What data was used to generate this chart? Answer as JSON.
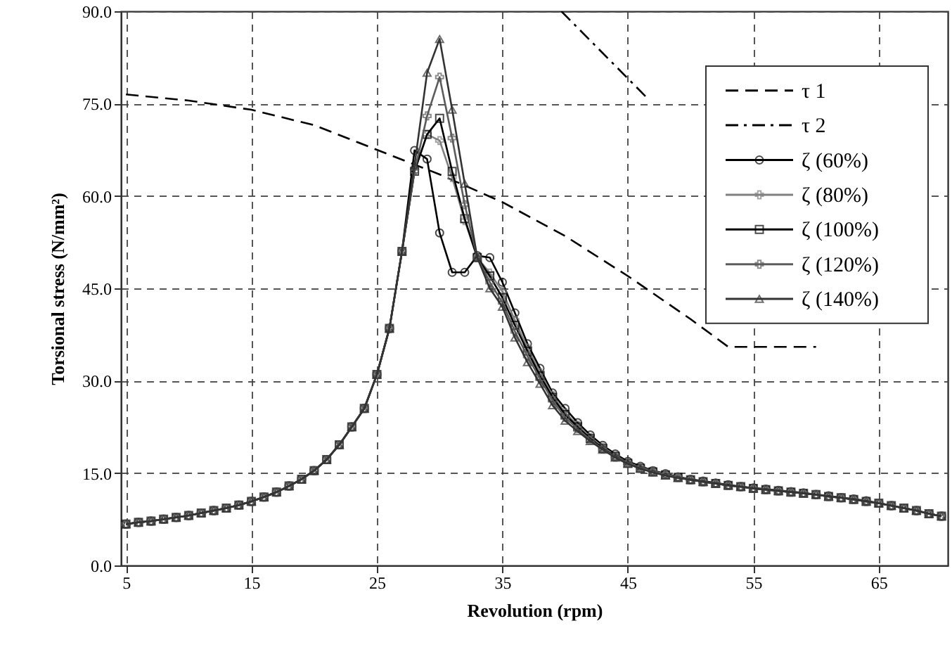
{
  "chart_data": {
    "type": "line",
    "xlabel": "Revolution (rpm)",
    "ylabel": "Torsional stress (N/mm²)",
    "xlim": [
      4.6,
      70.5
    ],
    "xticks": [
      5,
      15,
      25,
      35,
      45,
      55,
      65
    ],
    "ylim": [
      0,
      90
    ],
    "yticks": [
      {
        "value": 0,
        "label": "0.0"
      },
      {
        "value": 15,
        "label": "15.0"
      },
      {
        "value": 30,
        "label": "30.0"
      },
      {
        "value": 45,
        "label": "45.0"
      },
      {
        "value": 60,
        "label": "60.0"
      },
      {
        "value": 75,
        "label": "75.0"
      },
      {
        "value": 90,
        "label": "90.0"
      }
    ],
    "grid": true,
    "legend": "top right",
    "series": [
      {
        "name": "τ 1",
        "color": "#000000",
        "line_style": "dashed",
        "marker": "none",
        "x": [
          5,
          10,
          15,
          20,
          25,
          30,
          35,
          40,
          45,
          50,
          53,
          60
        ],
        "values": [
          76.5,
          75.5,
          74,
          71.5,
          67.5,
          63.5,
          59,
          53.5,
          47,
          40,
          35.5,
          35.5
        ]
      },
      {
        "name": "τ 2",
        "color": "#000000",
        "line_style": "dashdot",
        "marker": "none",
        "x": [
          39.7,
          46.5
        ],
        "values": [
          90,
          76
        ]
      },
      {
        "name": "ζ (60%)",
        "color": "#000000",
        "line_style": "solid",
        "marker": "circle",
        "x": [
          5,
          6,
          7,
          8,
          9,
          10,
          11,
          12,
          13,
          14,
          15,
          16,
          17,
          18,
          19,
          20,
          21,
          22,
          23,
          24,
          25,
          26,
          27,
          28,
          29,
          30,
          31,
          32,
          33,
          34,
          35,
          36,
          37,
          38,
          39,
          40,
          41,
          42,
          43,
          44,
          45,
          46,
          47,
          48,
          49,
          50,
          51,
          52,
          53,
          54,
          55,
          56,
          57,
          58,
          59,
          60,
          61,
          62,
          63,
          64,
          65,
          66,
          67,
          68,
          69,
          70
        ],
        "values": [
          6.7,
          7,
          7.2,
          7.5,
          7.8,
          8.1,
          8.5,
          8.9,
          9.3,
          9.8,
          10.4,
          11.1,
          11.9,
          12.9,
          14,
          15.4,
          17.2,
          19.6,
          22.5,
          25.5,
          31,
          38.5,
          51,
          67.4,
          66,
          54,
          47.6,
          47.6,
          50.3,
          50,
          46,
          41,
          36,
          32,
          28,
          25.5,
          23.2,
          21.2,
          19.5,
          18.1,
          16.9,
          16.1,
          15.4,
          14.9,
          14.4,
          14,
          13.7,
          13.4,
          13.1,
          12.8,
          12.6,
          12.4,
          12.2,
          12,
          11.8,
          11.5,
          11.3,
          11,
          10.8,
          10.5,
          10.1,
          9.7,
          9.3,
          8.9,
          8.4,
          8
        ]
      },
      {
        "name": "ζ (80%)",
        "color": "#808080",
        "line_style": "solid",
        "marker": "cross",
        "x": [
          5,
          6,
          7,
          8,
          9,
          10,
          11,
          12,
          13,
          14,
          15,
          16,
          17,
          18,
          19,
          20,
          21,
          22,
          23,
          24,
          25,
          26,
          27,
          28,
          29,
          30,
          31,
          32,
          33,
          34,
          35,
          36,
          37,
          38,
          39,
          40,
          41,
          42,
          43,
          44,
          45,
          46,
          47,
          48,
          49,
          50,
          51,
          52,
          53,
          54,
          55,
          56,
          57,
          58,
          59,
          60,
          61,
          62,
          63,
          64,
          65,
          66,
          67,
          68,
          69,
          70
        ],
        "values": [
          6.7,
          7,
          7.2,
          7.5,
          7.8,
          8.1,
          8.5,
          8.9,
          9.3,
          9.8,
          10.4,
          11.1,
          11.9,
          12.9,
          14,
          15.4,
          17.2,
          19.6,
          22.5,
          25.5,
          31,
          38.5,
          51,
          64,
          70,
          69,
          63,
          56,
          50,
          47.5,
          44.5,
          39.8,
          35.3,
          31.3,
          27.6,
          24.8,
          22.8,
          20.8,
          19.2,
          17.8,
          16.7,
          15.9,
          15.3,
          14.8,
          14.3,
          13.9,
          13.6,
          13.3,
          13,
          12.8,
          12.5,
          12.3,
          12.1,
          11.9,
          11.7,
          11.5,
          11.2,
          11,
          10.7,
          10.4,
          10.1,
          9.7,
          9.3,
          8.9,
          8.4,
          8
        ]
      },
      {
        "name": "ζ (100%)",
        "color": "#000000",
        "line_style": "solid",
        "marker": "square",
        "x": [
          5,
          6,
          7,
          8,
          9,
          10,
          11,
          12,
          13,
          14,
          15,
          16,
          17,
          18,
          19,
          20,
          21,
          22,
          23,
          24,
          25,
          26,
          27,
          28,
          29,
          30,
          31,
          32,
          33,
          34,
          35,
          36,
          37,
          38,
          39,
          40,
          41,
          42,
          43,
          44,
          45,
          46,
          47,
          48,
          49,
          50,
          51,
          52,
          53,
          54,
          55,
          56,
          57,
          58,
          59,
          60,
          61,
          62,
          63,
          64,
          65,
          66,
          67,
          68,
          69,
          70
        ],
        "values": [
          6.7,
          7,
          7.2,
          7.5,
          7.8,
          8.1,
          8.5,
          8.9,
          9.3,
          9.8,
          10.4,
          11.1,
          11.9,
          12.9,
          14,
          15.4,
          17.2,
          19.6,
          22.5,
          25.5,
          31,
          38.5,
          51,
          64,
          70,
          72.6,
          64,
          56.3,
          50,
          47,
          43.5,
          39,
          34.8,
          30.8,
          27.3,
          24.5,
          22.5,
          20.6,
          19,
          17.7,
          16.6,
          15.8,
          15.2,
          14.7,
          14.3,
          13.9,
          13.6,
          13.3,
          13,
          12.8,
          12.5,
          12.3,
          12.1,
          11.9,
          11.7,
          11.5,
          11.2,
          11,
          10.7,
          10.4,
          10.1,
          9.7,
          9.3,
          8.9,
          8.4,
          8
        ]
      },
      {
        "name": "ζ (120%)",
        "color": "#5c5c5c",
        "line_style": "solid",
        "marker": "cross",
        "x": [
          5,
          6,
          7,
          8,
          9,
          10,
          11,
          12,
          13,
          14,
          15,
          16,
          17,
          18,
          19,
          20,
          21,
          22,
          23,
          24,
          25,
          26,
          27,
          28,
          29,
          30,
          31,
          32,
          33,
          34,
          35,
          36,
          37,
          38,
          39,
          40,
          41,
          42,
          43,
          44,
          45,
          46,
          47,
          48,
          49,
          50,
          51,
          52,
          53,
          54,
          55,
          56,
          57,
          58,
          59,
          60,
          61,
          62,
          63,
          64,
          65,
          66,
          67,
          68,
          69,
          70
        ],
        "values": [
          6.7,
          7,
          7.2,
          7.5,
          7.8,
          8.1,
          8.5,
          8.9,
          9.3,
          9.8,
          10.4,
          11.1,
          11.9,
          12.9,
          14,
          15.4,
          17.2,
          19.6,
          22.5,
          25.5,
          31,
          38.5,
          51,
          64,
          73,
          79.3,
          69.4,
          58.6,
          50,
          46,
          42.7,
          38,
          34,
          30.3,
          26.8,
          24,
          22.2,
          20.4,
          18.9,
          17.6,
          16.6,
          15.8,
          15.2,
          14.7,
          14.3,
          13.9,
          13.6,
          13.3,
          13,
          12.8,
          12.5,
          12.3,
          12.1,
          11.9,
          11.7,
          11.5,
          11.2,
          11,
          10.7,
          10.4,
          10.1,
          9.7,
          9.3,
          8.9,
          8.4,
          8
        ]
      },
      {
        "name": "ζ (140%)",
        "color": "#333333",
        "line_style": "solid",
        "marker": "triangle",
        "x": [
          5,
          6,
          7,
          8,
          9,
          10,
          11,
          12,
          13,
          14,
          15,
          16,
          17,
          18,
          19,
          20,
          21,
          22,
          23,
          24,
          25,
          26,
          27,
          28,
          29,
          30,
          31,
          32,
          33,
          34,
          35,
          36,
          37,
          38,
          39,
          40,
          41,
          42,
          43,
          44,
          45,
          46,
          47,
          48,
          49,
          50,
          51,
          52,
          53,
          54,
          55,
          56,
          57,
          58,
          59,
          60,
          61,
          62,
          63,
          64,
          65,
          66,
          67,
          68,
          69,
          70
        ],
        "values": [
          6.7,
          7,
          7.2,
          7.5,
          7.8,
          8.1,
          8.5,
          8.9,
          9.3,
          9.8,
          10.4,
          11.1,
          11.9,
          12.9,
          14,
          15.4,
          17.2,
          19.6,
          22.5,
          25.5,
          31,
          38.5,
          51,
          65,
          80,
          85.5,
          74,
          62,
          50,
          45,
          42,
          37,
          33,
          29.5,
          26,
          23.5,
          21.8,
          20.2,
          18.8,
          17.5,
          16.5,
          15.7,
          15.1,
          14.6,
          14.2,
          13.9,
          13.6,
          13.3,
          13,
          12.8,
          12.5,
          12.3,
          12.1,
          11.9,
          11.7,
          11.5,
          11.2,
          11,
          10.7,
          10.4,
          10.1,
          9.7,
          9.3,
          8.9,
          8.4,
          8
        ]
      }
    ]
  }
}
